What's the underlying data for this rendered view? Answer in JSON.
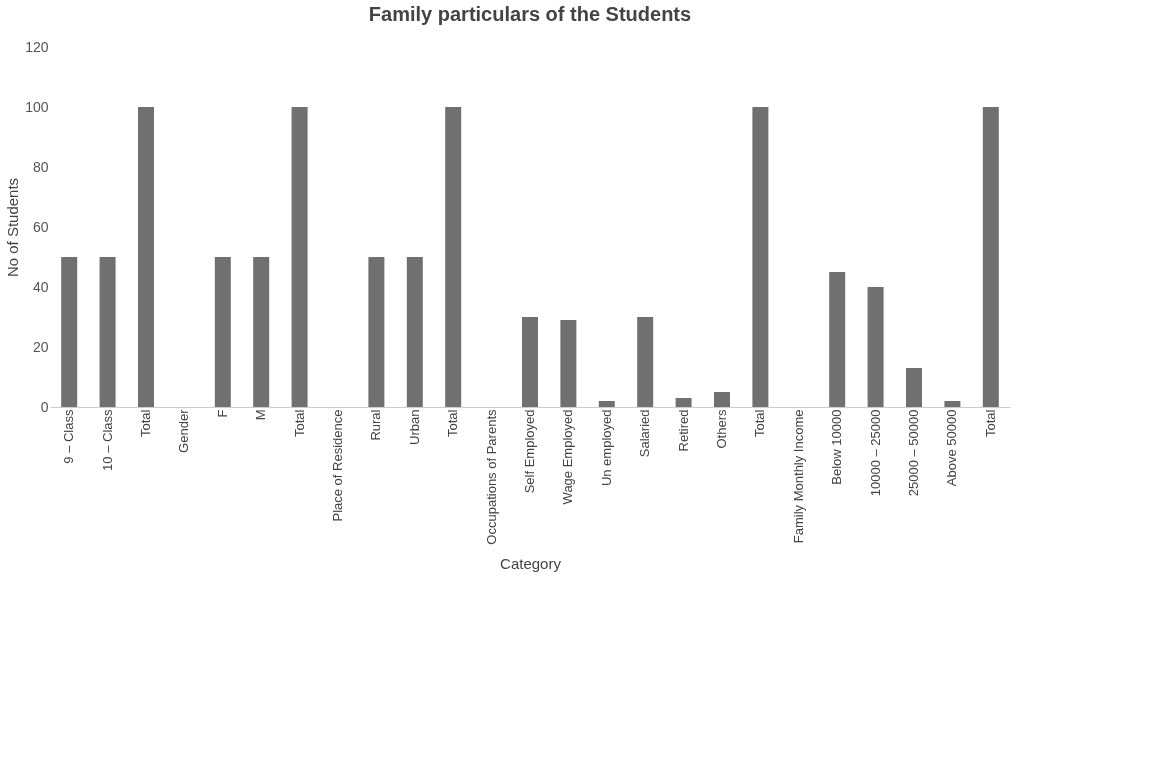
{
  "chart_data": {
    "type": "bar",
    "title": "Family particulars of the Students",
    "xlabel": "Category",
    "ylabel": "No of Students",
    "categories": [
      "9 – Class",
      "10 – Class",
      "Total",
      "Gender",
      "F",
      "M",
      "Total",
      "Place of Residence",
      "Rural",
      "Urban",
      "Total",
      "Occupations of Parents",
      "Self Employed",
      "Wage Employed",
      "Un employed",
      "Salaried",
      "Retired",
      "Others",
      "Total",
      "Family Monthly Income",
      "Below 10000",
      "10000 – 25000",
      "25000 – 50000",
      "Above 50000",
      "Total"
    ],
    "values": [
      50,
      50,
      100,
      null,
      50,
      50,
      100,
      null,
      50,
      50,
      100,
      null,
      30,
      29,
      2,
      30,
      3,
      5,
      100,
      null,
      45,
      40,
      13,
      2,
      100
    ],
    "color": "#707070",
    "ylim": [
      0,
      120
    ],
    "yticks": [
      0,
      20,
      40,
      60,
      80,
      100,
      120
    ],
    "grid": false
  }
}
